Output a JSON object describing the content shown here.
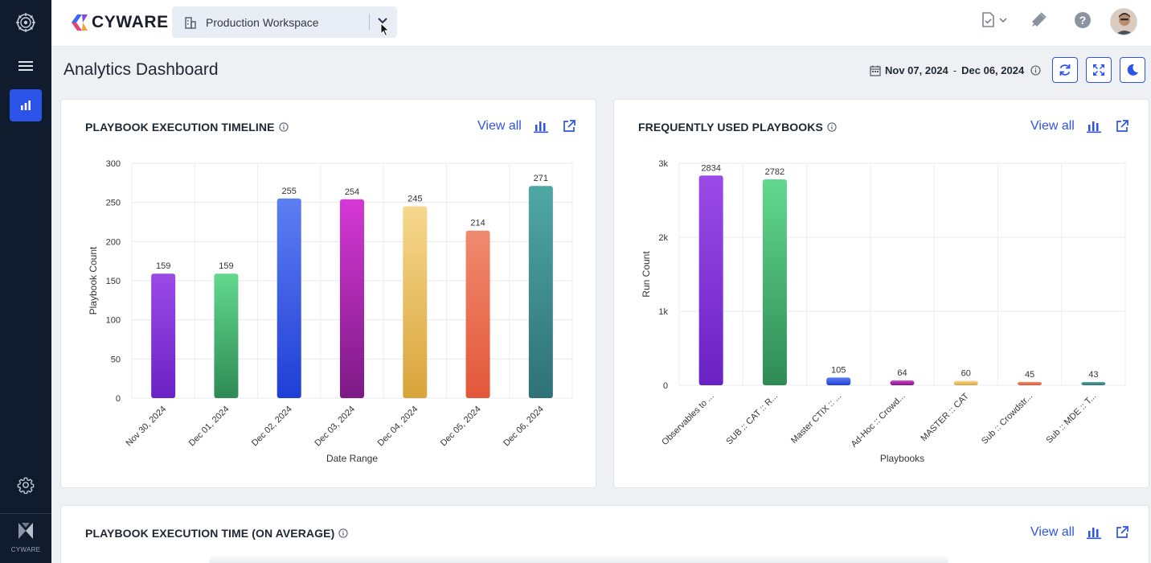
{
  "brand": {
    "name": "CYWARE",
    "sidebar_label": "CYWARE"
  },
  "workspace": {
    "label": "Production Workspace"
  },
  "page": {
    "title": "Analytics Dashboard"
  },
  "date_range": {
    "start": "Nov 07, 2024",
    "separator": "-",
    "end": "Dec 06, 2024"
  },
  "icons": {
    "sidebar": [
      "cyware-ring-logo-icon",
      "hamburger-menu-icon",
      "bar-chart-icon",
      "gear-icon",
      "cyware-logo-icon"
    ],
    "topbar": [
      "building-icon",
      "chevron-down-icon",
      "document-check-icon",
      "megaphone-icon",
      "help-icon",
      "avatar"
    ],
    "header": [
      "calendar-icon",
      "info-icon",
      "refresh-icon",
      "fullscreen-icon",
      "moon-icon"
    ],
    "card": [
      "info-icon",
      "bar-chart-icon",
      "export-icon"
    ]
  },
  "colors": {
    "accent": "#2c54e8",
    "sidebar_bg": "#101c2e"
  },
  "cards": [
    {
      "title": "PLAYBOOK EXECUTION TIMELINE",
      "view_all": "View all"
    },
    {
      "title": "FREQUENTLY USED PLAYBOOKS",
      "view_all": "View all"
    },
    {
      "title": "PLAYBOOK EXECUTION TIME (ON AVERAGE)",
      "view_all": "View all"
    }
  ],
  "chart_data": [
    {
      "type": "bar",
      "title": "PLAYBOOK EXECUTION TIMELINE",
      "xlabel": "Date Range",
      "ylabel": "Playbook Count",
      "ylim": [
        0,
        300
      ],
      "yticks": [
        "0",
        "50",
        "100",
        "150",
        "200",
        "250",
        "300"
      ],
      "categories": [
        "Nov 30, 2024",
        "Dec 01, 2024",
        "Dec 02, 2024",
        "Dec 03, 2024",
        "Dec 04, 2024",
        "Dec 05, 2024",
        "Dec 06, 2024"
      ],
      "values": [
        159,
        159,
        255,
        254,
        245,
        214,
        271
      ],
      "colors": [
        [
          "#9b4be6",
          "#6a22c4"
        ],
        [
          "#62d98e",
          "#2f8a55"
        ],
        [
          "#5d7ff2",
          "#1f3ed6"
        ],
        [
          "#d538d5",
          "#7d1a86"
        ],
        [
          "#f6d88e",
          "#d9a43a"
        ],
        [
          "#f08a6e",
          "#e3573a"
        ],
        [
          "#4fa7a4",
          "#2f7178"
        ]
      ],
      "grid": true,
      "legend": "none"
    },
    {
      "type": "bar",
      "title": "FREQUENTLY USED PLAYBOOKS",
      "xlabel": "Playbooks",
      "ylabel": "Run Count",
      "ylim": [
        0,
        3000
      ],
      "yticks": [
        "0",
        "1k",
        "2k",
        "3k"
      ],
      "categories": [
        "Observables to ...",
        "SUB :: CAT :: R...",
        "Master CTIX :: ...",
        "Ad-Hoc :: Crowd...",
        "MASTER :: CAT",
        "Sub :: Crowdstr...",
        "Sub :: MDE :: T..."
      ],
      "values": [
        2834,
        2782,
        105,
        64,
        60,
        45,
        43
      ],
      "colors": [
        [
          "#9b4be6",
          "#6a22c4"
        ],
        [
          "#62d98e",
          "#2f8a55"
        ],
        [
          "#5d7ff2",
          "#1f3ed6"
        ],
        [
          "#d538d5",
          "#7d1a86"
        ],
        [
          "#f6d88e",
          "#d9a43a"
        ],
        [
          "#f08a6e",
          "#e3573a"
        ],
        [
          "#4fa7a4",
          "#2f7178"
        ]
      ],
      "grid": true,
      "legend": "none"
    }
  ]
}
